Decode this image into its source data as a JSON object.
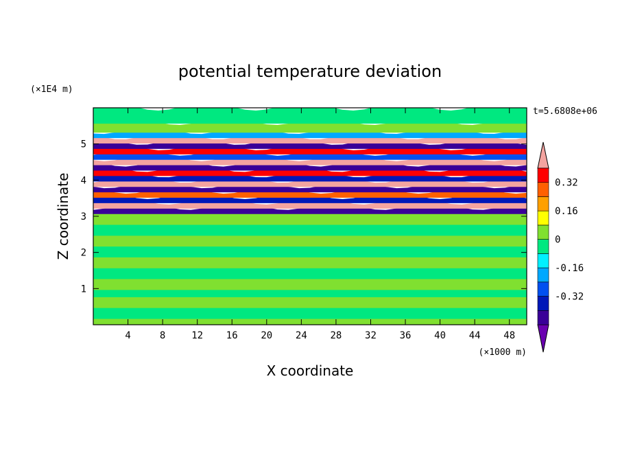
{
  "chart_data": {
    "type": "heatmap",
    "title": "potential temperature deviation",
    "xlabel": "X coordinate",
    "ylabel": "Z coordinate",
    "x_unit": "(×1000 m)",
    "y_unit": "(×1E4 m)",
    "time_label": "t=5.6808e+06",
    "xlim": [
      0,
      50
    ],
    "ylim": [
      0,
      6
    ],
    "x_ticks": [
      4,
      8,
      12,
      16,
      20,
      24,
      28,
      32,
      36,
      40,
      44,
      48
    ],
    "y_ticks": [
      1,
      2,
      3,
      4,
      5
    ],
    "colorbar": {
      "levels": [
        -0.48,
        -0.4,
        -0.32,
        -0.24,
        -0.16,
        -0.08,
        0,
        0.08,
        0.16,
        0.24,
        0.32,
        0.4
      ],
      "colors": [
        "#6a00b0",
        "#3a0098",
        "#0018b8",
        "#0050f0",
        "#00a8ff",
        "#00f0ff",
        "#00e880",
        "#80e030",
        "#ffff00",
        "#ffa000",
        "#ff6000",
        "#ff0000",
        "#f4a4a0"
      ],
      "tick_labels": [
        "0.32",
        "0.16",
        "0",
        "-0.16",
        "-0.32"
      ],
      "tick_values": [
        0.32,
        0.16,
        0,
        -0.16,
        -0.32
      ],
      "extend": "both"
    },
    "bands": [
      {
        "z": [
          0.0,
          0.2
        ],
        "value": 0.04
      },
      {
        "z": [
          0.2,
          0.5
        ],
        "value": -0.04
      },
      {
        "z": [
          0.5,
          0.8
        ],
        "value": 0.04
      },
      {
        "z": [
          0.8,
          1.0
        ],
        "value": -0.04
      },
      {
        "z": [
          1.0,
          1.3
        ],
        "value": 0.04
      },
      {
        "z": [
          1.3,
          1.6
        ],
        "value": -0.04
      },
      {
        "z": [
          1.6,
          1.9
        ],
        "value": 0.04
      },
      {
        "z": [
          1.9,
          2.2
        ],
        "value": -0.04
      },
      {
        "z": [
          2.2,
          2.5
        ],
        "value": 0.04
      },
      {
        "z": [
          2.5,
          2.8
        ],
        "value": -0.04
      },
      {
        "z": [
          2.8,
          3.1
        ],
        "value": 0.04
      },
      {
        "z": [
          3.1,
          3.25
        ],
        "value": -0.44
      },
      {
        "z": [
          3.25,
          3.4
        ],
        "value": 0.44
      },
      {
        "z": [
          3.4,
          3.55
        ],
        "value": -0.36
      },
      {
        "z": [
          3.55,
          3.7
        ],
        "value": 0.3
      },
      {
        "z": [
          3.7,
          3.85
        ],
        "value": -0.44
      },
      {
        "z": [
          3.85,
          4.0
        ],
        "value": 0.44
      },
      {
        "z": [
          4.0,
          4.15
        ],
        "value": -0.36
      },
      {
        "z": [
          4.15,
          4.3
        ],
        "value": 0.36
      },
      {
        "z": [
          4.3,
          4.45
        ],
        "value": -0.44
      },
      {
        "z": [
          4.45,
          4.6
        ],
        "value": 0.44
      },
      {
        "z": [
          4.6,
          4.75
        ],
        "value": -0.3
      },
      {
        "z": [
          4.75,
          4.9
        ],
        "value": 0.36
      },
      {
        "z": [
          4.9,
          5.05
        ],
        "value": -0.44
      },
      {
        "z": [
          5.05,
          5.2
        ],
        "value": 0.44
      },
      {
        "z": [
          5.2,
          5.35
        ],
        "value": -0.2
      },
      {
        "z": [
          5.35,
          5.6
        ],
        "value": 0.04
      },
      {
        "z": [
          5.6,
          6.0
        ],
        "value": -0.04
      }
    ]
  }
}
